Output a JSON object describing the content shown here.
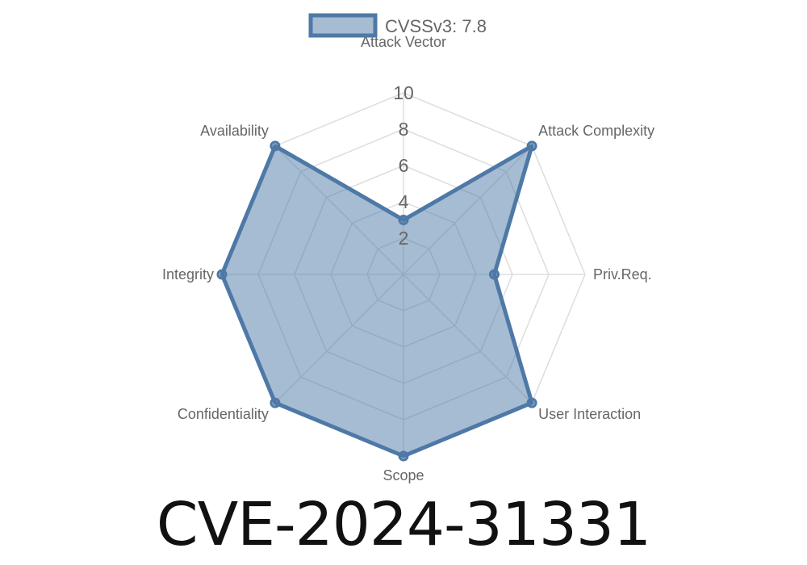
{
  "chart_data": {
    "type": "radar",
    "categories": [
      "Attack Vector",
      "Attack Complexity",
      "Priv.Req.",
      "User Interaction",
      "Scope",
      "Confidentiality",
      "Integrity",
      "Availability"
    ],
    "series": [
      {
        "name": "CVSSv3: 7.8",
        "values": [
          3,
          10,
          5,
          10,
          10,
          10,
          10,
          10
        ]
      }
    ],
    "rlim": [
      0,
      10
    ],
    "ticks": [
      "2",
      "4",
      "6",
      "8",
      "10"
    ],
    "legend": "top",
    "grid": true,
    "colors": {
      "line": "#4e79a7",
      "fill": "rgba(78,121,167,0.5)",
      "grid": "#dddddd"
    }
  },
  "title": "CVE-2024-31331"
}
